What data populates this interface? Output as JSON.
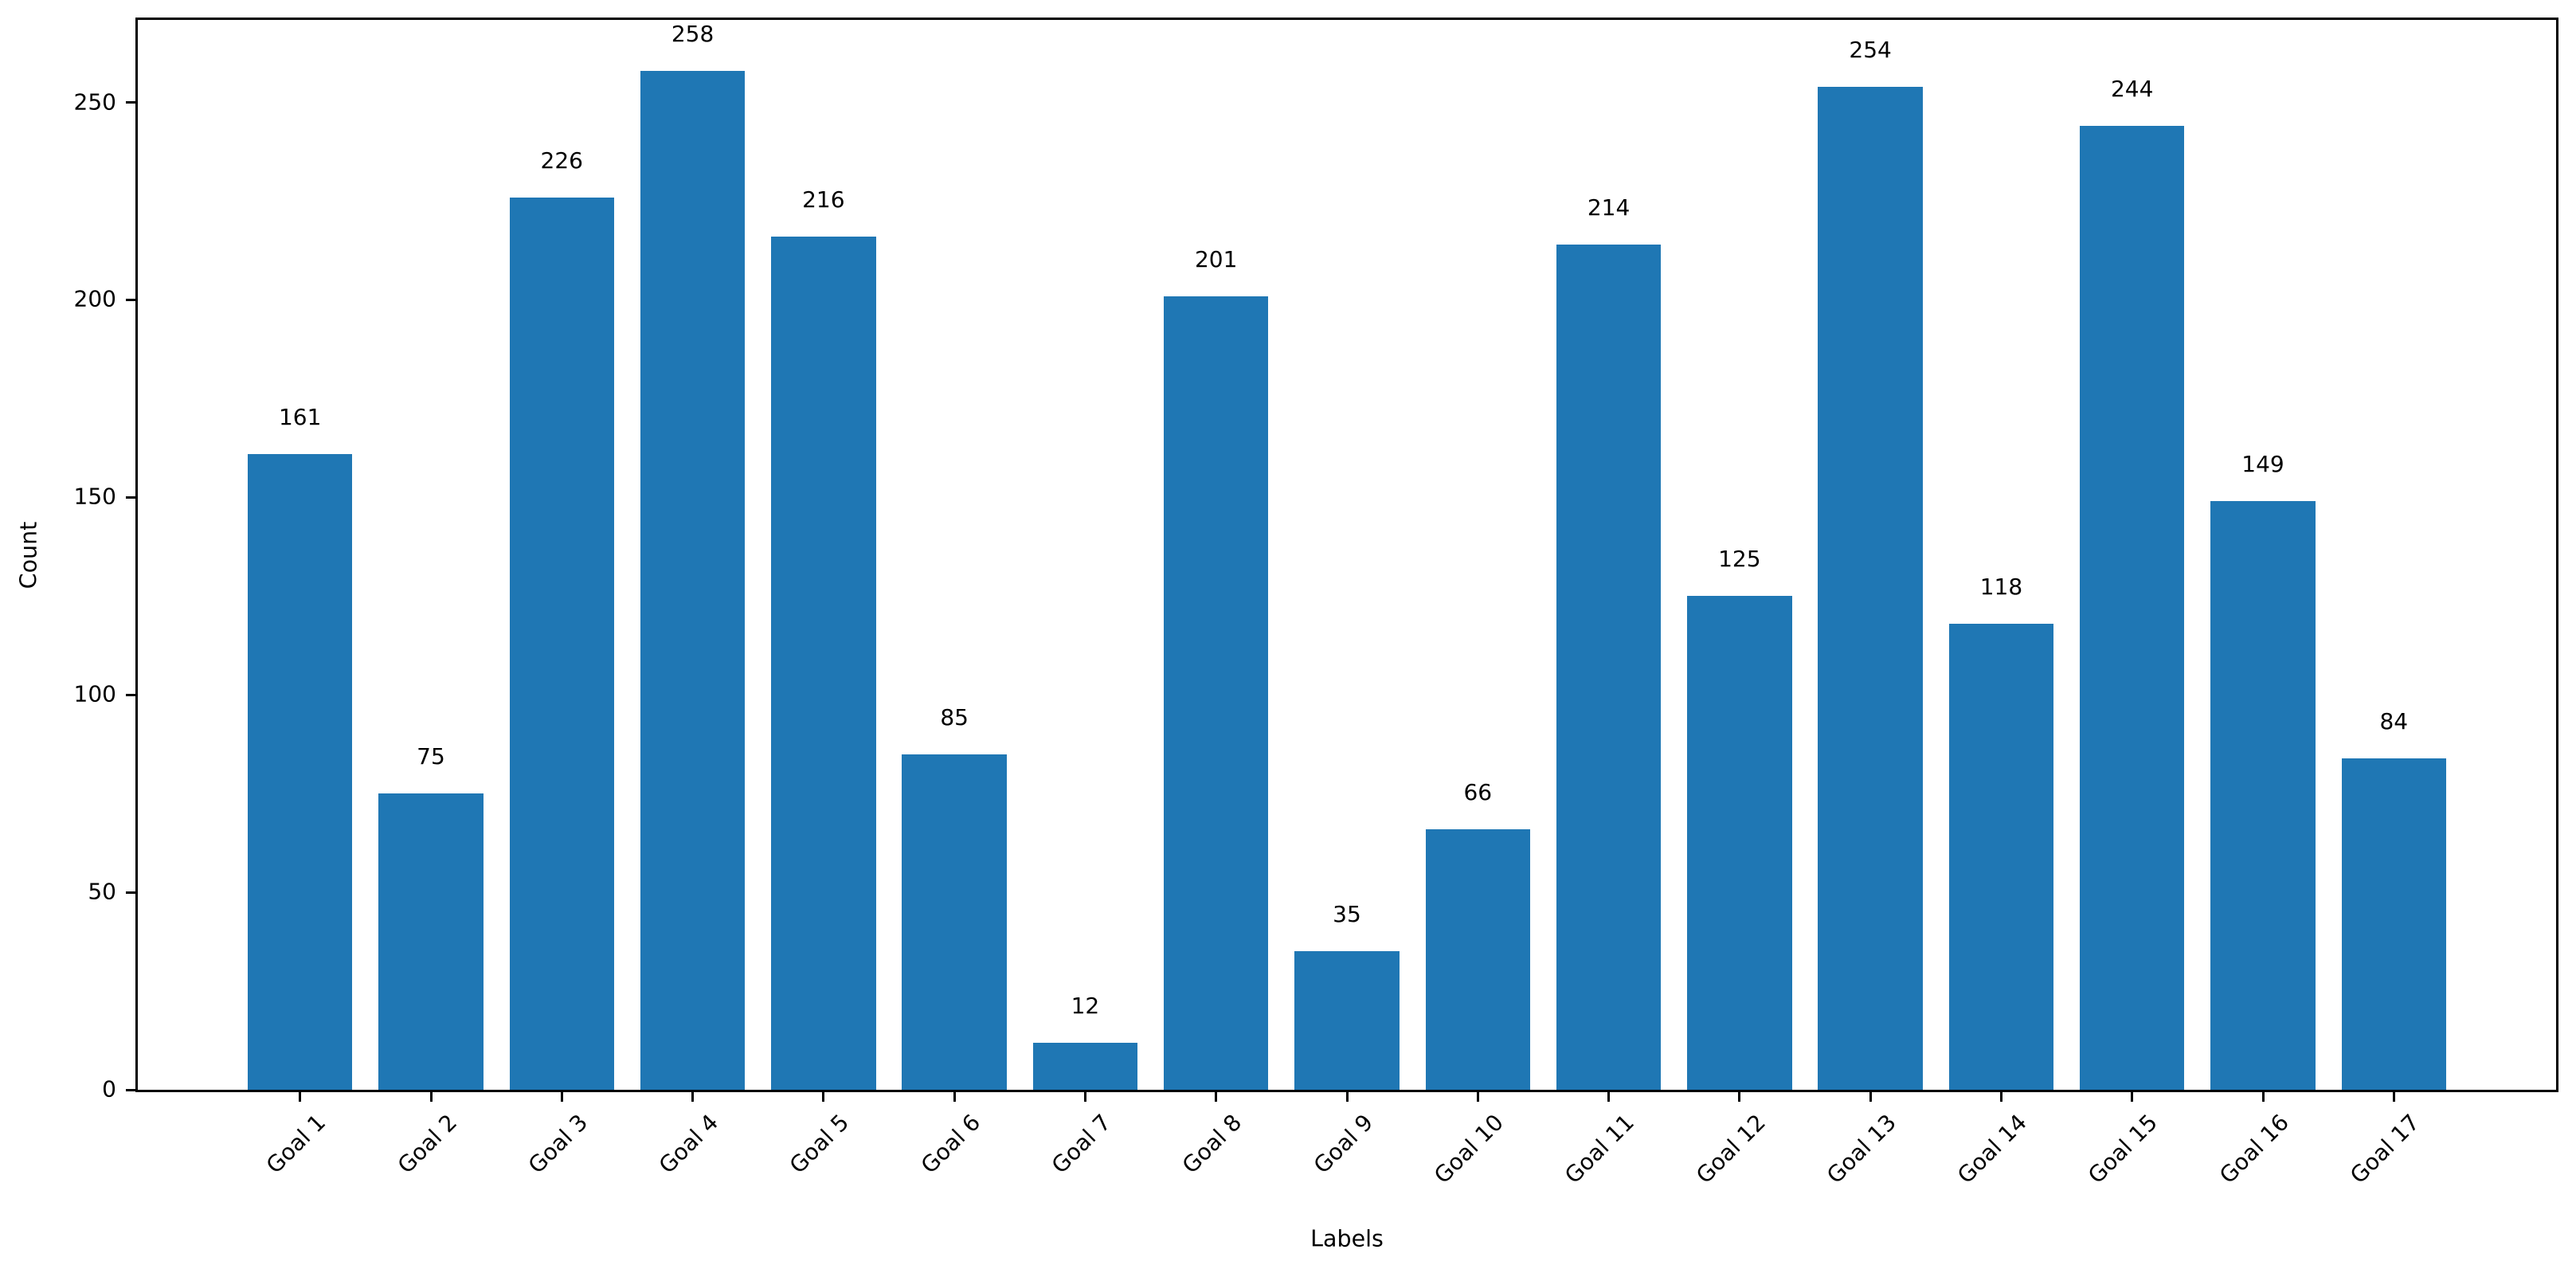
{
  "figure": {
    "background": "#ffffff"
  },
  "chart_data": {
    "type": "bar",
    "title": "",
    "xlabel": "Labels",
    "ylabel": "Count",
    "categories": [
      "Goal 1",
      "Goal 2",
      "Goal 3",
      "Goal 4",
      "Goal 5",
      "Goal 6",
      "Goal 7",
      "Goal 8",
      "Goal 9",
      "Goal 10",
      "Goal 11",
      "Goal 12",
      "Goal 13",
      "Goal 14",
      "Goal 15",
      "Goal 16",
      "Goal 17"
    ],
    "values": [
      161,
      75,
      226,
      258,
      216,
      85,
      12,
      201,
      35,
      66,
      214,
      125,
      254,
      118,
      244,
      149,
      84
    ],
    "bar_value_labels": [
      "161",
      "75",
      "226",
      "258",
      "216",
      "85",
      "12",
      "201",
      "35",
      "66",
      "214",
      "125",
      "254",
      "118",
      "244",
      "149",
      "84"
    ],
    "y_ticks": [
      0,
      50,
      100,
      150,
      200,
      250
    ],
    "y_tick_labels": [
      "0",
      "50",
      "100",
      "150",
      "200",
      "250"
    ],
    "ylim": [
      0,
      270.9
    ],
    "xlim_units": [
      -1.24,
      17.24
    ],
    "bar_width_fraction": 0.8,
    "x_tick_rotation_deg": 45,
    "grid": false,
    "legend": null,
    "bar_color": "#1f77b4",
    "axis_color": "#000000",
    "text_color": "#000000"
  }
}
